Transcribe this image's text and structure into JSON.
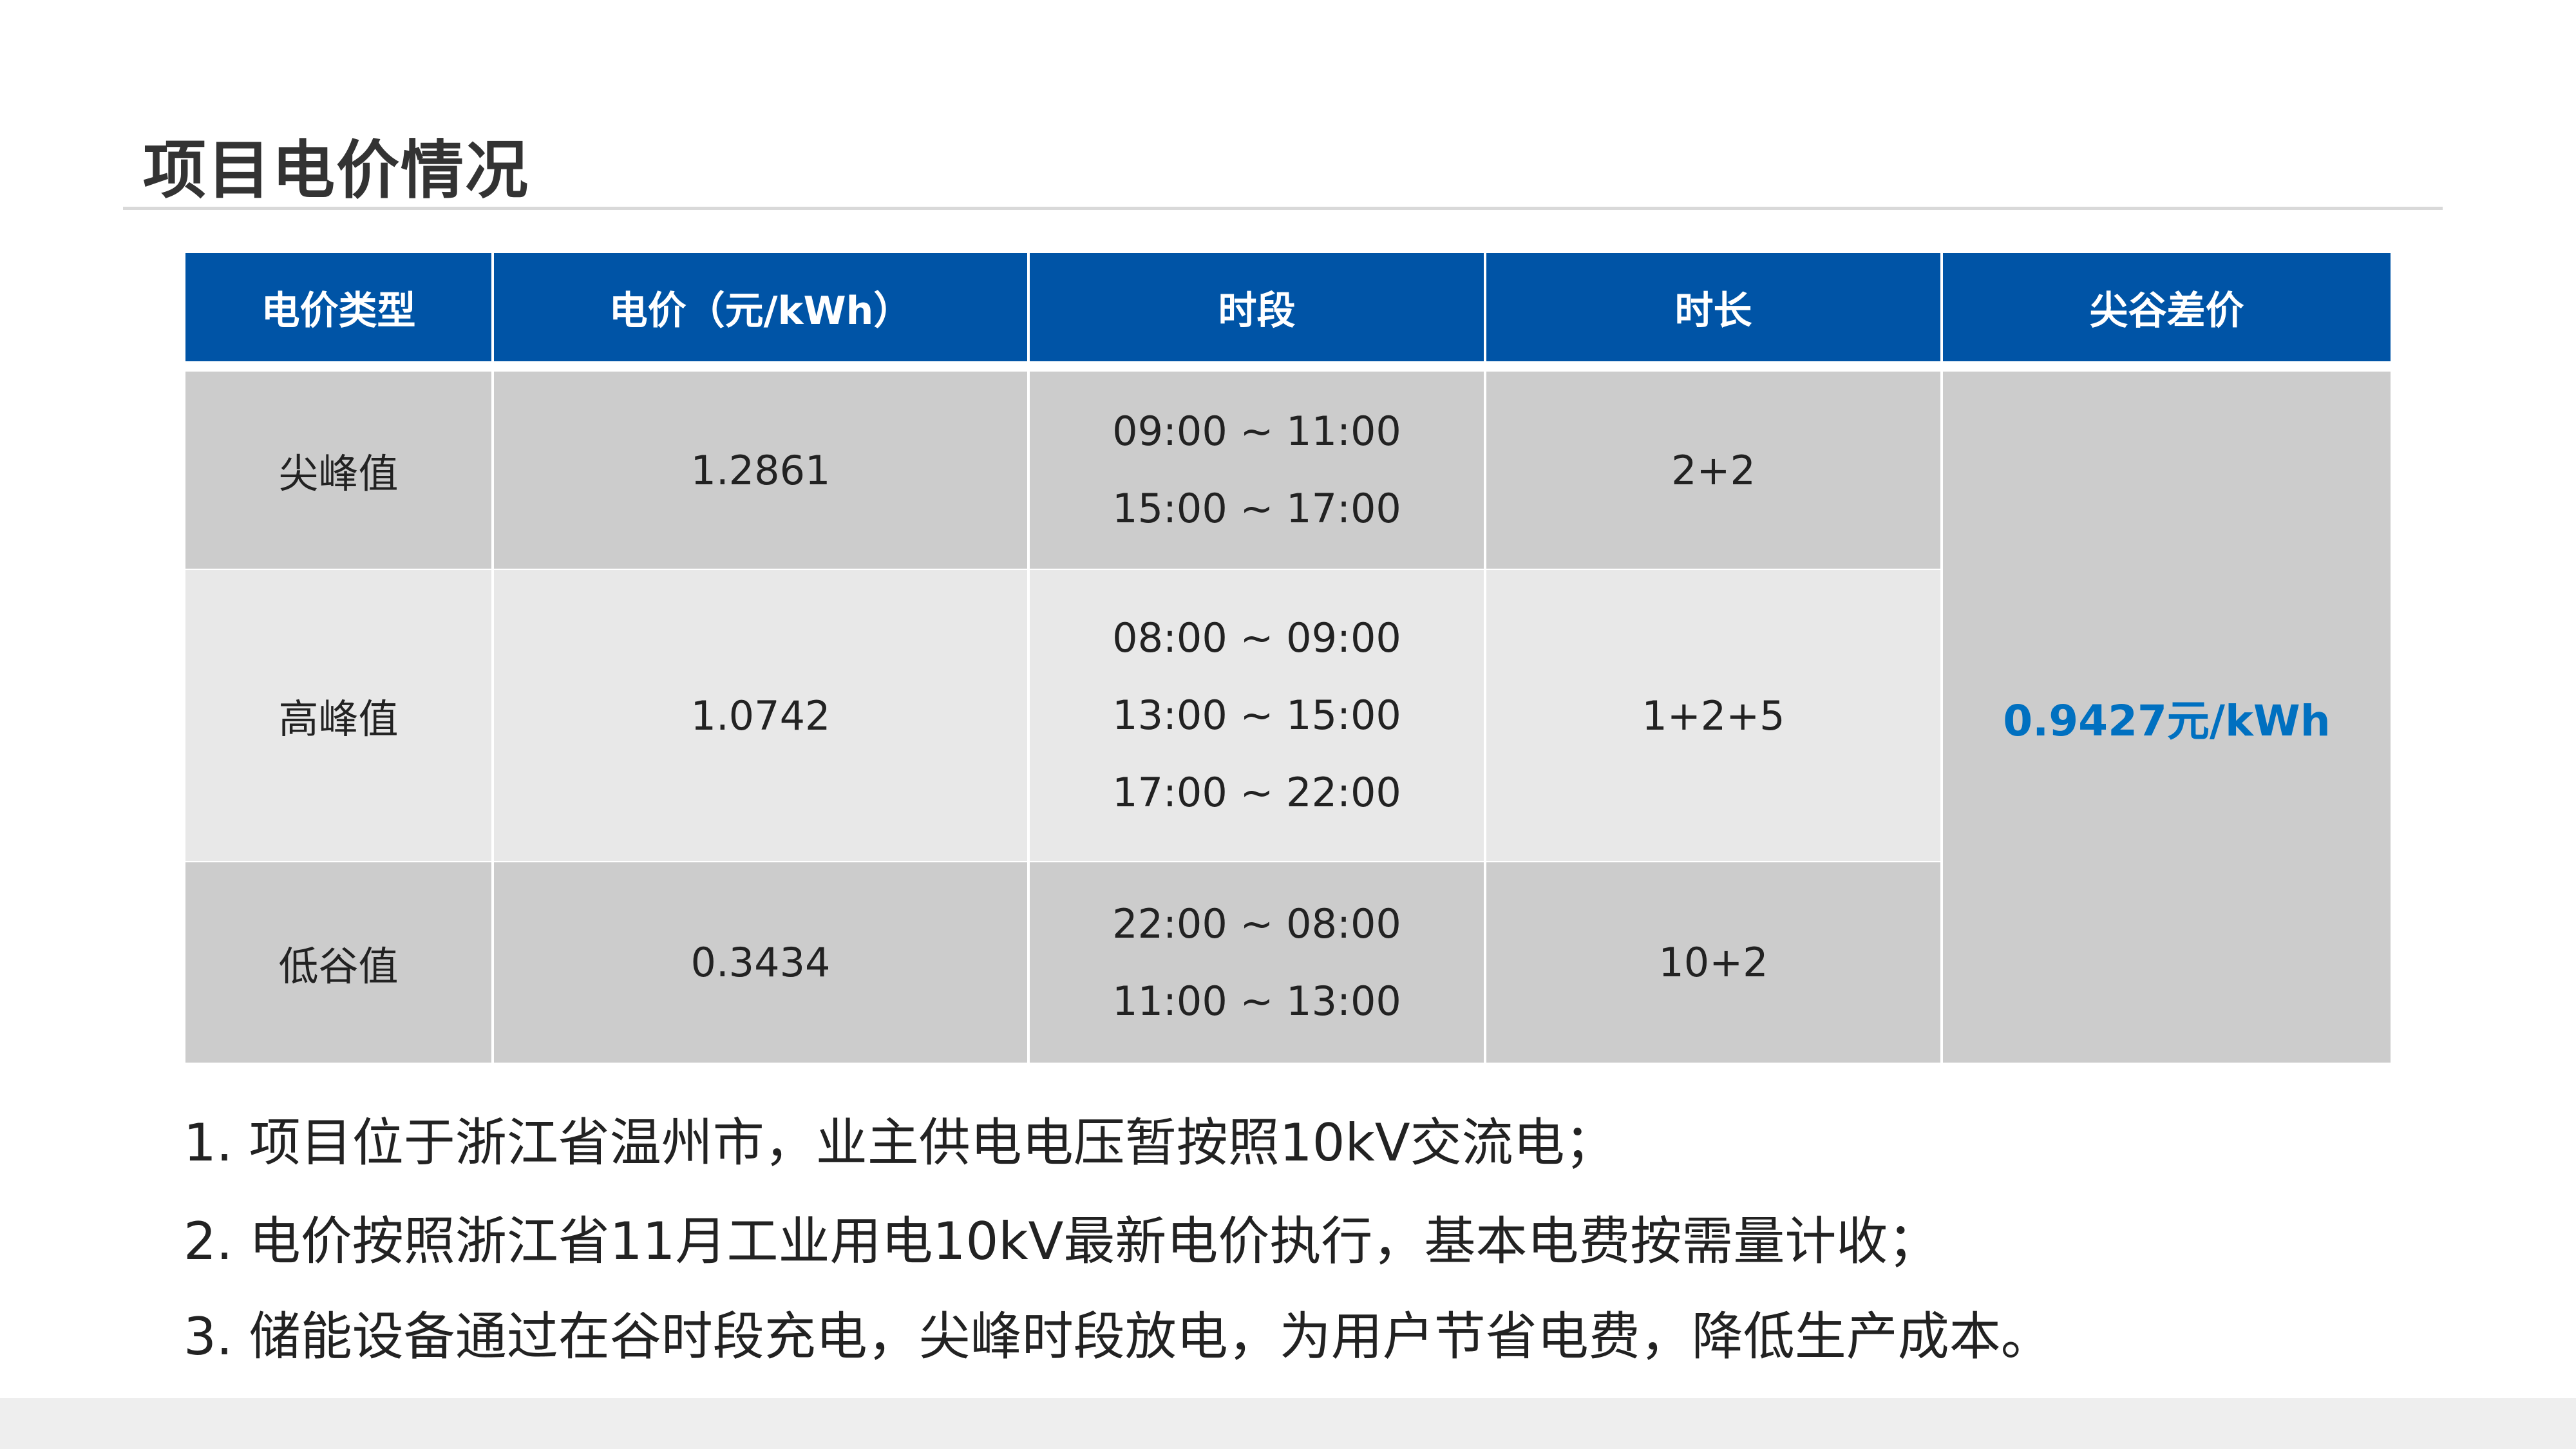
{
  "title": "项目电价情况",
  "colors": {
    "header": "#0054a6",
    "row_dark": "#cccccc",
    "row_light": "#e8e8e8",
    "highlight": "#0070c0"
  },
  "table": {
    "headers": [
      "电价类型",
      "电价（元/kWh）",
      "时段",
      "时长",
      "尖谷差价"
    ],
    "rows": [
      {
        "type": "尖峰值",
        "price": "1.2861",
        "periods": [
          "09:00 ~ 11:00",
          "15:00 ~ 17:00"
        ],
        "duration": "2+2"
      },
      {
        "type": "高峰值",
        "price": "1.0742",
        "periods": [
          "08:00 ~ 09:00",
          "13:00 ~ 15:00",
          "17:00 ~ 22:00"
        ],
        "duration": "1+2+5"
      },
      {
        "type": "低谷值",
        "price": "0.3434",
        "periods": [
          "22:00 ~ 08:00",
          "11:00 ~ 13:00"
        ],
        "duration": "10+2"
      }
    ],
    "spread": "0.9427元/kWh"
  },
  "notes": [
    "1. 项目位于浙江省温州市，业主供电电压暂按照10kV交流电；",
    "2. 电价按照浙江省11月工业用电10kV最新电价执行，基本电费按需量计收；",
    "3. 储能设备通过在谷时段充电，尖峰时段放电，为用户节省电费，降低生产成本。"
  ]
}
